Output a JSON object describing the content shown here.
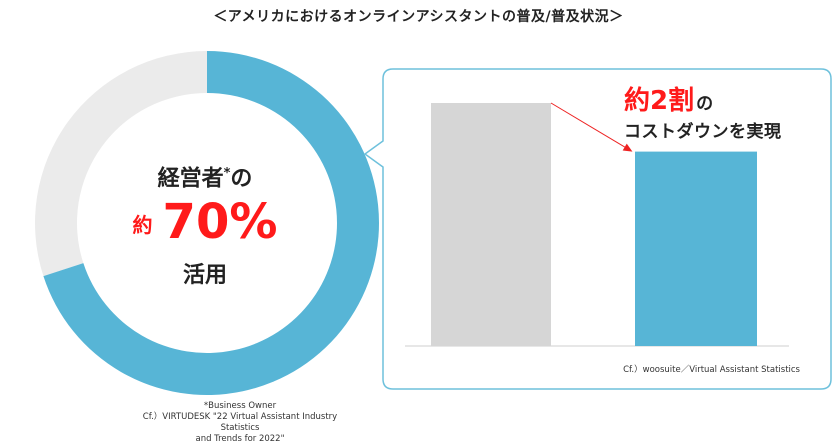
{
  "title": "＜アメリカにおけるオンラインアシスタントの普及/普及状況＞",
  "donut": {
    "line1": "経営者",
    "footnote_mark": "*",
    "line1_suffix": "の",
    "approx_label": "約",
    "big_value": "70%",
    "line3": "活用",
    "note_definition": "*Business Owner",
    "note_source_line1": "Cf.）VIRTUDESK \"22 Virtual Assistant Industry Statistics",
    "note_source_line2": "and Trends for 2022\"",
    "colors": {
      "filled": "#57b5d6",
      "empty": "#ebebeb"
    }
  },
  "bar_panel": {
    "label_red": "約2割",
    "label_red_suffix": "の",
    "label_line2": "コストダウンを実現",
    "source": "Cf.）woosuite／Virtual Assistant Statistics",
    "colors": {
      "before": "#d6d6d6",
      "after": "#57b5d6",
      "arrow": "#ee2222",
      "border": "#6ec1dc"
    }
  },
  "chart_data": [
    {
      "type": "pie",
      "title": "",
      "categories": [
        "活用",
        ""
      ],
      "values": [
        70,
        30
      ],
      "colors": [
        "#57b5d6",
        "#ebebeb"
      ]
    },
    {
      "type": "bar",
      "title": "",
      "categories": [
        "",
        ""
      ],
      "values": [
        100,
        80
      ],
      "colors": [
        "#d6d6d6",
        "#57b5d6"
      ],
      "annotation": "約2割のコストダウンを実現",
      "ylim": [
        0,
        100
      ]
    }
  ]
}
